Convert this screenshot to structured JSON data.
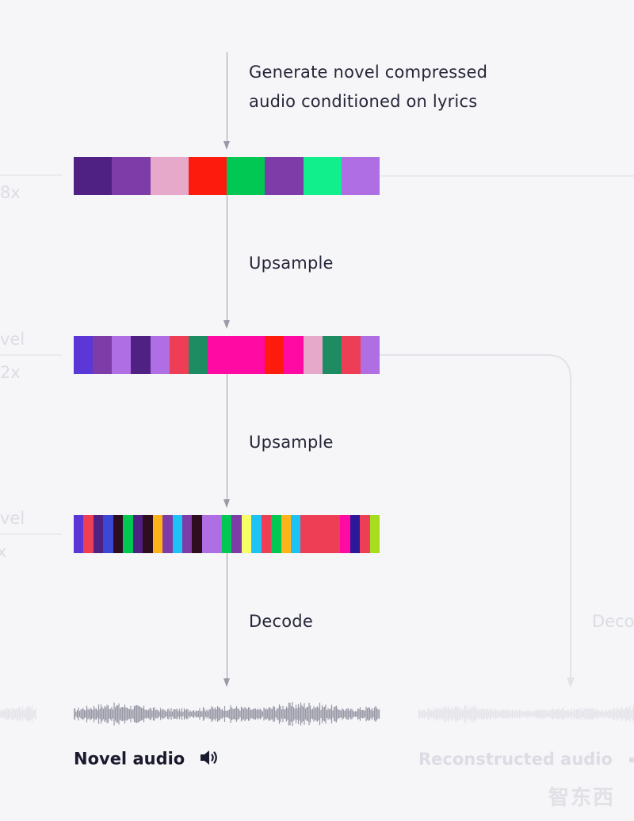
{
  "steps": {
    "generate": "Generate novel compressed\naudio conditioned on lyrics",
    "upsample_1": "Upsample",
    "upsample_2": "Upsample",
    "decode": "Decode"
  },
  "output_label": "Novel audio",
  "background_faded": {
    "level_top_factor": "8x",
    "level_mid_word": "vel",
    "level_mid_factor": "2x",
    "level_bottom_word": "vel",
    "level_bottom_factor": "x",
    "decode": "Deco",
    "reconstructed_label": "Reconstructed audio"
  },
  "watermark": "智东西",
  "icons": {
    "speaker": "speaker-volume-icon"
  },
  "bands": {
    "top": [
      "#4e2182",
      "#7d3ca7",
      "#e7a9c9",
      "#fd1b0d",
      "#00c853",
      "#7d3ca7",
      "#10ef8c",
      "#b06ee4"
    ],
    "middle": [
      "#5a37d6",
      "#7d3ca7",
      "#b06ee4",
      "#4e2182",
      "#b06ee4",
      "#ee3e55",
      "#1e8c62",
      "#ff0aa2",
      "#ff0aa2",
      "#ff0aa2",
      "#fd1b0d",
      "#ff0aa2",
      "#e7a9c9",
      "#1e8c62",
      "#ee3e55",
      "#b06ee4"
    ],
    "bottom": [
      "#5a37d6",
      "#ee3e55",
      "#4e2182",
      "#3b48d6",
      "#2e0d1f",
      "#00c853",
      "#4e2182",
      "#2e0d1f",
      "#ffb31a",
      "#7d3ca7",
      "#1ec3f5",
      "#7d3ca7",
      "#2e0d1f",
      "#b06ee4",
      "#b06ee4",
      "#00c853",
      "#7d3ca7",
      "#f8ff66",
      "#1ec3f5",
      "#ee3e55",
      "#00c853",
      "#ffb31a",
      "#1ec3f5",
      "#ee3e55",
      "#ee3e55",
      "#ee3e55",
      "#ee3e55",
      "#ff0aa2",
      "#2a1a9a",
      "#ee3e55",
      "#a8dc1e"
    ]
  }
}
